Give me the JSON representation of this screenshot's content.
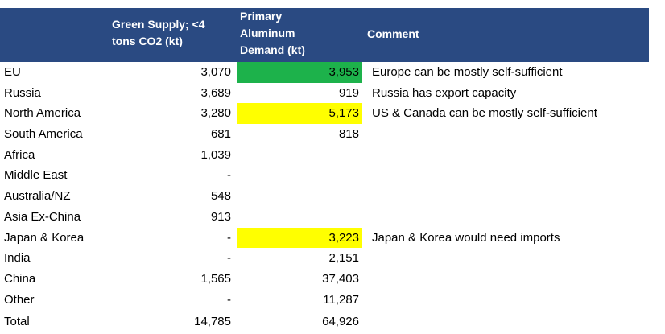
{
  "header": {
    "green_supply": "Green Supply; <4 tons CO2 (kt)",
    "green_supply_line1": "Green Supply; <4",
    "green_supply_line2": "tons CO2 (kt)",
    "demand": "Primary Aluminum Demand (kt)",
    "demand_line1": "Primary",
    "demand_line2": "Aluminum",
    "demand_line3": "Demand (kt)",
    "comment": "Comment"
  },
  "colors": {
    "header_bg": "#2a4a82",
    "header_text": "#ffffff",
    "highlight_green": "#1db24b",
    "highlight_yellow": "#ffff00"
  },
  "rows": [
    {
      "region": "EU",
      "green": "3,070",
      "demand": "3,953",
      "comment": "Europe can be mostly self-sufficient",
      "highlight": "green"
    },
    {
      "region": "Russia",
      "green": "3,689",
      "demand": "919",
      "comment": "Russia has export capacity",
      "highlight": ""
    },
    {
      "region": "North America",
      "green": "3,280",
      "demand": "5,173",
      "comment": "US & Canada can be mostly self-sufficient",
      "highlight": "yellow"
    },
    {
      "region": "South America",
      "green": "681",
      "demand": "818",
      "comment": "",
      "highlight": ""
    },
    {
      "region": "Africa",
      "green": "1,039",
      "demand": "",
      "comment": "",
      "highlight": ""
    },
    {
      "region": "Middle East",
      "green": "-",
      "demand": "",
      "comment": "",
      "highlight": ""
    },
    {
      "region": "Australia/NZ",
      "green": "548",
      "demand": "",
      "comment": "",
      "highlight": ""
    },
    {
      "region": "Asia Ex-China",
      "green": "913",
      "demand": "",
      "comment": "",
      "highlight": ""
    },
    {
      "region": "Japan & Korea",
      "green": "-",
      "demand": "3,223",
      "comment": "Japan & Korea would need imports",
      "highlight": "yellow"
    },
    {
      "region": "India",
      "green": "-",
      "demand": "2,151",
      "comment": "",
      "highlight": ""
    },
    {
      "region": "China",
      "green": "1,565",
      "demand": "37,403",
      "comment": "",
      "highlight": ""
    },
    {
      "region": "Other",
      "green": "-",
      "demand": "11,287",
      "comment": "",
      "highlight": ""
    }
  ],
  "total": {
    "region": "Total",
    "green": "14,785",
    "demand": "64,926"
  }
}
